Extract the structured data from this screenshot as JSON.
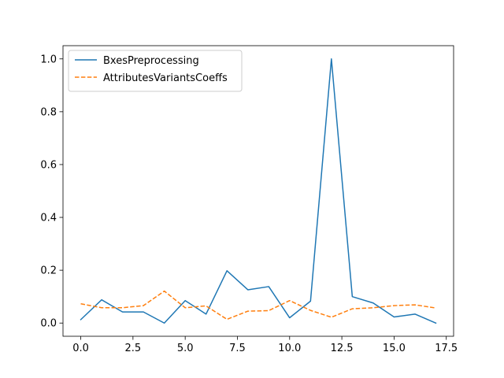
{
  "chart_data": {
    "type": "line",
    "title": "",
    "xlabel": "",
    "ylabel": "",
    "xlim": [
      -0.85,
      17.85
    ],
    "ylim": [
      -0.05,
      1.05
    ],
    "xticks": [
      0.0,
      2.5,
      5.0,
      7.5,
      10.0,
      12.5,
      15.0,
      17.5
    ],
    "xtick_labels": [
      "0.0",
      "2.5",
      "5.0",
      "7.5",
      "10.0",
      "12.5",
      "15.0",
      "17.5"
    ],
    "yticks": [
      0.0,
      0.2,
      0.4,
      0.6,
      0.8,
      1.0
    ],
    "ytick_labels": [
      "0.0",
      "0.2",
      "0.4",
      "0.6",
      "0.8",
      "1.0"
    ],
    "grid": false,
    "legend_position": "top-left",
    "x": [
      0,
      1,
      2,
      3,
      4,
      5,
      6,
      7,
      8,
      9,
      10,
      11,
      12,
      13,
      14,
      15,
      16,
      17
    ],
    "series": [
      {
        "name": "BxesPreprocessing",
        "color": "#1f77b4",
        "style": "solid",
        "values": [
          0.013,
          0.088,
          0.042,
          0.042,
          0.0,
          0.085,
          0.034,
          0.198,
          0.126,
          0.138,
          0.02,
          0.083,
          1.0,
          0.1,
          0.076,
          0.023,
          0.034,
          0.0
        ]
      },
      {
        "name": "AttributesVariantsCoeffs",
        "color": "#ff7f0e",
        "style": "dashed",
        "values": [
          0.073,
          0.058,
          0.058,
          0.066,
          0.121,
          0.058,
          0.065,
          0.014,
          0.045,
          0.047,
          0.085,
          0.048,
          0.022,
          0.054,
          0.058,
          0.066,
          0.069,
          0.057
        ]
      }
    ]
  }
}
